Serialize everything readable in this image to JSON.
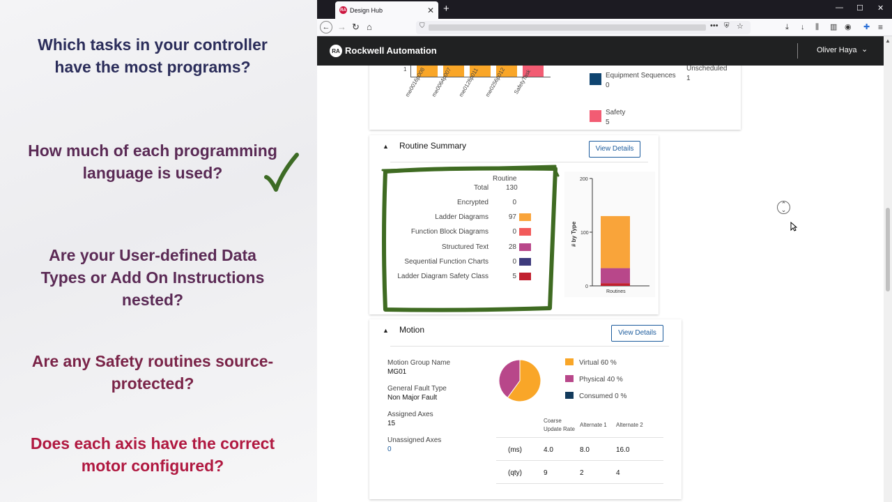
{
  "questions": [
    {
      "text": "Which tasks in your controller have the most programs?",
      "color": "#2b2d5a"
    },
    {
      "text": "How much of each programming language is used?",
      "color": "#5a2a55"
    },
    {
      "text": "Are your User-defined Data Types or Add On Instructions nested?",
      "color": "#5b2a55"
    },
    {
      "text": "Are any Safety routines source-protected?",
      "color": "#7a2448"
    },
    {
      "text": "Does each axis have the correct motor configured?",
      "color": "#b01840"
    }
  ],
  "browser": {
    "tab_title": "Design Hub",
    "tab_favicon": "RA"
  },
  "app": {
    "brand": "Rockwell Automation",
    "logo": "RA",
    "user": "Oliver Haya"
  },
  "tasks_chart": {
    "y_tick": "1",
    "categories": [
      "me0016p008",
      "me0064p007",
      "me0128p011",
      "me0256p012",
      "SafetyTask"
    ],
    "legend": [
      {
        "label": "Equipment Sequences",
        "value": "0",
        "color": "#0f4470"
      },
      {
        "label": "Safety",
        "value": "5",
        "color": "#f25c73"
      }
    ],
    "unscheduled_label": "Unscheduled",
    "unscheduled_value": "1"
  },
  "routine_summary": {
    "title": "Routine Summary",
    "view_details": "View Details",
    "column_header": "Routine",
    "total_label": "Total",
    "total_value": "130",
    "rows": [
      {
        "label": "Encrypted",
        "value": "0",
        "color": ""
      },
      {
        "label": "Ladder Diagrams",
        "value": "97",
        "color": "#f9a43a"
      },
      {
        "label": "Function Block Diagrams",
        "value": "0",
        "color": "#f25a5a"
      },
      {
        "label": "Structured Text",
        "value": "28",
        "color": "#b8478a"
      },
      {
        "label": "Sequential Function Charts",
        "value": "0",
        "color": "#3d3a7c"
      },
      {
        "label": "Ladder Diagram Safety Class",
        "value": "5",
        "color": "#c1202f"
      }
    ]
  },
  "chart_data": {
    "type": "bar",
    "stacked": true,
    "categories": [
      "Routines"
    ],
    "ylabel": "# by Type",
    "ylim": [
      0,
      200
    ],
    "yticks": [
      "0",
      "100",
      "200"
    ],
    "series": [
      {
        "name": "Ladder Diagram Safety Class",
        "values": [
          5
        ],
        "color": "#c1202f"
      },
      {
        "name": "Structured Text",
        "values": [
          28
        ],
        "color": "#b8478a"
      },
      {
        "name": "Ladder Diagrams",
        "values": [
          97
        ],
        "color": "#f9a43a"
      }
    ]
  },
  "motion": {
    "title": "Motion",
    "view_details": "View Details",
    "fields": [
      {
        "label": "Motion Group Name",
        "value": "MG01"
      },
      {
        "label": "General Fault Type",
        "value": "Non Major Fault"
      },
      {
        "label": "Assigned Axes",
        "value": "15"
      },
      {
        "label": "Unassigned Axes",
        "value": "0"
      }
    ],
    "pie": [
      {
        "label": "Virtual 60 %",
        "value": 60,
        "color": "#f9a628"
      },
      {
        "label": "Physical 40 %",
        "value": 40,
        "color": "#b8478a"
      },
      {
        "label": "Consumed 0 %",
        "value": 0,
        "color": "#123a5c"
      }
    ],
    "table_headers": [
      "Coarse Update Rate",
      "Alternate 1",
      "Alternate 2"
    ],
    "table_rows": [
      {
        "unit": "(ms)",
        "values": [
          "4.0",
          "8.0",
          "16.0"
        ]
      },
      {
        "unit": "(qty)",
        "values": [
          "9",
          "2",
          "4"
        ]
      }
    ]
  }
}
